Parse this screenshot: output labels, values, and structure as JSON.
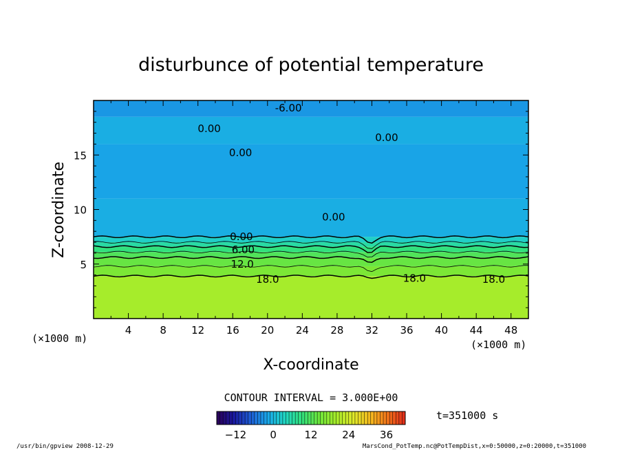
{
  "chart_data": {
    "type": "heatmap",
    "title": "disturbunce of potential temperature",
    "xlabel": "X-coordinate",
    "ylabel": "Z-coordinate",
    "x_unit_left": "(×1000 m)",
    "x_unit_right": "(×1000 m)",
    "xlim": [
      0,
      50
    ],
    "ylim": [
      0,
      20
    ],
    "x_ticks": [
      4,
      8,
      12,
      16,
      20,
      24,
      28,
      32,
      36,
      40,
      44,
      48
    ],
    "y_ticks": [
      5,
      10,
      15
    ],
    "layers": [
      {
        "z0": 0,
        "z1": 3.9,
        "value": 20
      },
      {
        "z0": 3.9,
        "z1": 4.8,
        "value": 16
      },
      {
        "z0": 4.8,
        "z1": 5.6,
        "value": 14
      },
      {
        "z0": 5.6,
        "z1": 6.1,
        "value": 12
      },
      {
        "z0": 6.1,
        "z1": 6.6,
        "value": 9
      },
      {
        "z0": 6.6,
        "z1": 7.0,
        "value": 6
      },
      {
        "z0": 7.0,
        "z1": 7.5,
        "value": 3
      },
      {
        "z0": 7.5,
        "z1": 11.0,
        "value": -1
      },
      {
        "z0": 11.0,
        "z1": 16.0,
        "value": -2
      },
      {
        "z0": 16.0,
        "z1": 18.5,
        "value": -1
      },
      {
        "z0": 18.5,
        "z1": 20.0,
        "value": -3
      }
    ],
    "contours": [
      {
        "z": 7.5,
        "label": "0.00"
      },
      {
        "z": 7.0,
        "label": ""
      },
      {
        "z": 6.6,
        "label": "6.00"
      },
      {
        "z": 6.1,
        "label": ""
      },
      {
        "z": 5.6,
        "label": "12.0"
      },
      {
        "z": 4.8,
        "label": ""
      },
      {
        "z": 3.9,
        "label": "18.0"
      }
    ],
    "contour_labels": [
      {
        "x": 13.3,
        "z": 17.4,
        "text": "0.00"
      },
      {
        "x": 16.9,
        "z": 15.2,
        "text": "0.00"
      },
      {
        "x": 22.4,
        "z": 19.3,
        "text": "-6.00"
      },
      {
        "x": 33.7,
        "z": 16.6,
        "text": "0.00"
      },
      {
        "x": 27.6,
        "z": 9.3,
        "text": "0.00"
      },
      {
        "x": 17.0,
        "z": 7.5,
        "text": "0.00"
      },
      {
        "x": 17.2,
        "z": 6.3,
        "text": "6.00"
      },
      {
        "x": 17.1,
        "z": 5.0,
        "text": "12.0"
      },
      {
        "x": 20.0,
        "z": 3.6,
        "text": "18.0"
      },
      {
        "x": 36.9,
        "z": 3.7,
        "text": "18.0"
      },
      {
        "x": 46.0,
        "z": 3.6,
        "text": "18.0"
      }
    ],
    "colorbar": {
      "min": -18,
      "max": 42,
      "tick_values": [
        -12,
        0,
        12,
        24,
        36
      ],
      "tick_labels": [
        "−12",
        "0",
        "12",
        "24",
        "36"
      ],
      "colors": [
        "#2a0055",
        "#1a1aa0",
        "#1e5fd6",
        "#19a9e8",
        "#22d6c0",
        "#33e07a",
        "#6fe63a",
        "#a8ec2a",
        "#e0e82a",
        "#f5b81e",
        "#f0701a",
        "#e02a1a"
      ]
    },
    "contour_interval_text": "CONTOUR INTERVAL = 3.000E+00",
    "time_text": "t=351000 s"
  },
  "footer": {
    "left": "/usr/bin/gpview  2008-12-29",
    "right": "MarsCond_PotTemp.nc@PotTempDist,x=0:50000,z=0:20000,t=351000"
  }
}
